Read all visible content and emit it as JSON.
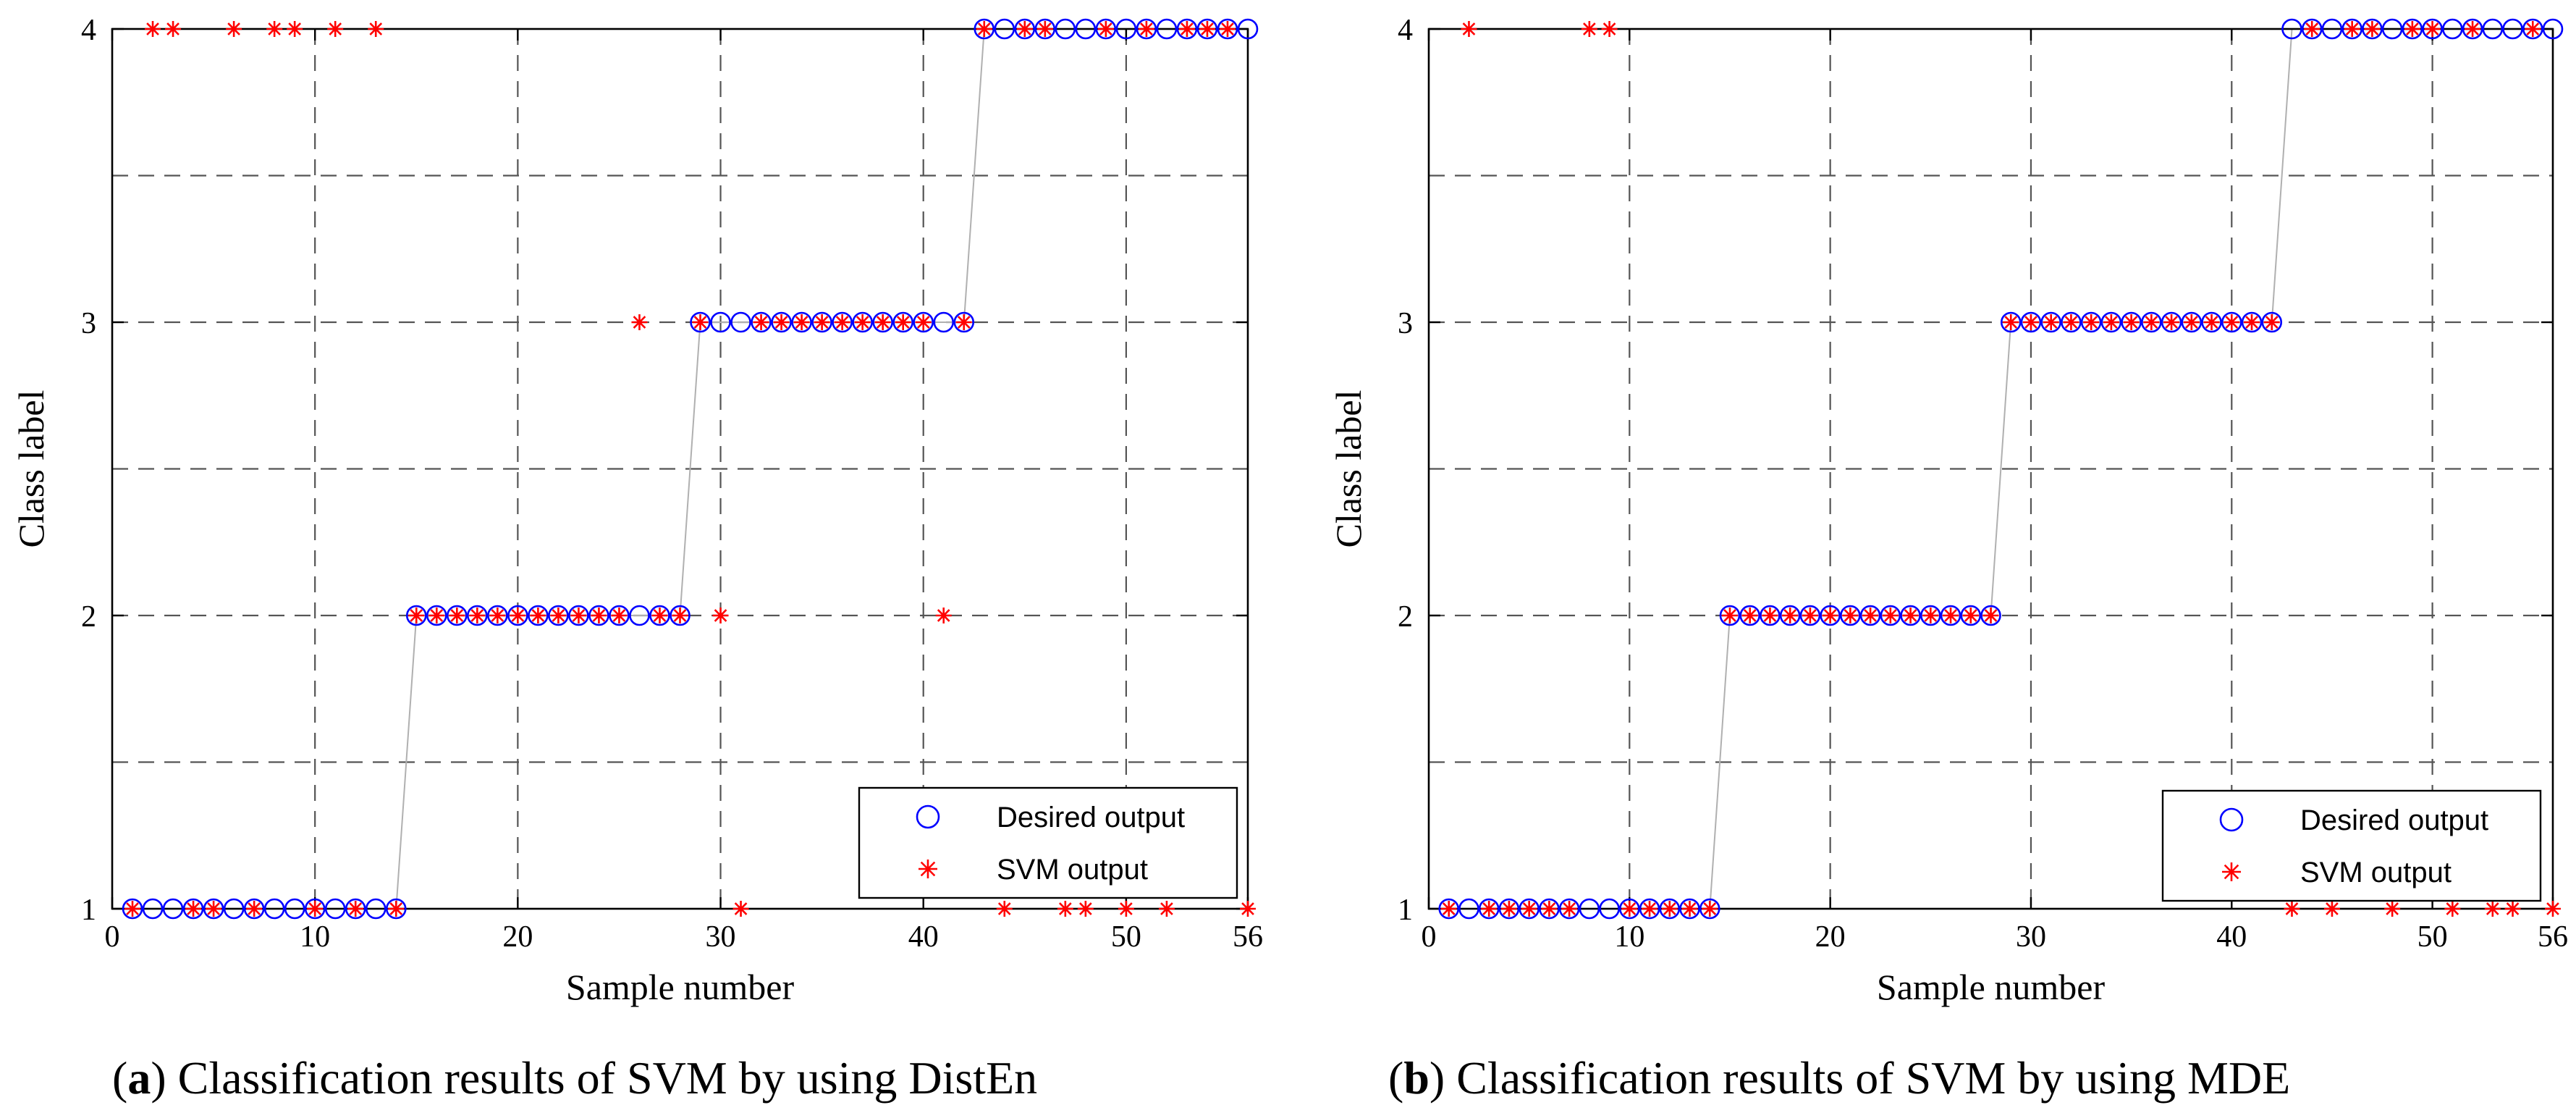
{
  "chart_data": [
    {
      "type": "scatter",
      "caption_letter": "a",
      "caption_rest": ") Classification results of SVM by using DistEn",
      "caption_open": "(",
      "xlabel": "Sample number",
      "ylabel": "Class label",
      "xlim": [
        0,
        56
      ],
      "ylim": [
        1,
        4
      ],
      "xticks": [
        0,
        10,
        20,
        30,
        40,
        50,
        56
      ],
      "yticks": [
        1,
        2,
        3,
        4
      ],
      "grid": true,
      "legend_position": "bottom-right",
      "legend": [
        "Desired output",
        "SVM output"
      ],
      "series": [
        {
          "name": "Desired output",
          "marker": "circle",
          "color": "#0000ff",
          "x": [
            1,
            2,
            3,
            4,
            5,
            6,
            7,
            8,
            9,
            10,
            11,
            12,
            13,
            14,
            15,
            16,
            17,
            18,
            19,
            20,
            21,
            22,
            23,
            24,
            25,
            26,
            27,
            28,
            29,
            30,
            31,
            32,
            33,
            34,
            35,
            36,
            37,
            38,
            39,
            40,
            41,
            42,
            43,
            44,
            45,
            46,
            47,
            48,
            49,
            50,
            51,
            52,
            53,
            54,
            55,
            56
          ],
          "y": [
            1,
            1,
            1,
            1,
            1,
            1,
            1,
            1,
            1,
            1,
            1,
            1,
            1,
            1,
            2,
            2,
            2,
            2,
            2,
            2,
            2,
            2,
            2,
            2,
            2,
            2,
            2,
            2,
            3,
            3,
            3,
            3,
            3,
            3,
            3,
            3,
            3,
            3,
            3,
            3,
            3,
            3,
            4,
            4,
            4,
            4,
            4,
            4,
            4,
            4,
            4,
            4,
            4,
            4,
            4,
            4
          ]
        },
        {
          "name": "SVM output",
          "marker": "star",
          "color": "#ff0000",
          "x": [
            1,
            2,
            3,
            4,
            5,
            6,
            7,
            8,
            9,
            10,
            11,
            12,
            13,
            14,
            15,
            16,
            17,
            18,
            19,
            20,
            21,
            22,
            23,
            24,
            25,
            26,
            27,
            28,
            29,
            30,
            31,
            32,
            33,
            34,
            35,
            36,
            37,
            38,
            39,
            40,
            41,
            42,
            43,
            44,
            45,
            46,
            47,
            48,
            49,
            50,
            51,
            52,
            53,
            54,
            55,
            56
          ],
          "y": [
            1,
            4,
            4,
            1,
            1,
            4,
            1,
            4,
            4,
            1,
            4,
            1,
            4,
            1,
            2,
            2,
            2,
            2,
            2,
            2,
            2,
            2,
            2,
            2,
            2,
            3,
            2,
            2,
            3,
            2,
            1,
            3,
            3,
            3,
            3,
            3,
            3,
            3,
            3,
            3,
            2,
            3,
            4,
            1,
            4,
            4,
            1,
            1,
            4,
            1,
            4,
            1,
            4,
            4,
            4,
            1
          ]
        }
      ]
    },
    {
      "type": "scatter",
      "caption_letter": "b",
      "caption_rest": ") Classification results of SVM by using MDE",
      "caption_open": "(",
      "xlabel": "Sample number",
      "ylabel": "Class label",
      "xlim": [
        0,
        56
      ],
      "ylim": [
        1,
        4
      ],
      "xticks": [
        0,
        10,
        20,
        30,
        40,
        50,
        56
      ],
      "yticks": [
        1,
        2,
        3,
        4
      ],
      "grid": true,
      "legend_position": "bottom-right",
      "legend": [
        "Desired output",
        "SVM output"
      ],
      "series": [
        {
          "name": "Desired output",
          "marker": "circle",
          "color": "#0000ff",
          "x": [
            1,
            2,
            3,
            4,
            5,
            6,
            7,
            8,
            9,
            10,
            11,
            12,
            13,
            14,
            15,
            16,
            17,
            18,
            19,
            20,
            21,
            22,
            23,
            24,
            25,
            26,
            27,
            28,
            29,
            30,
            31,
            32,
            33,
            34,
            35,
            36,
            37,
            38,
            39,
            40,
            41,
            42,
            43,
            44,
            45,
            46,
            47,
            48,
            49,
            50,
            51,
            52,
            53,
            54,
            55,
            56
          ],
          "y": [
            1,
            1,
            1,
            1,
            1,
            1,
            1,
            1,
            1,
            1,
            1,
            1,
            1,
            1,
            2,
            2,
            2,
            2,
            2,
            2,
            2,
            2,
            2,
            2,
            2,
            2,
            2,
            2,
            3,
            3,
            3,
            3,
            3,
            3,
            3,
            3,
            3,
            3,
            3,
            3,
            3,
            3,
            4,
            4,
            4,
            4,
            4,
            4,
            4,
            4,
            4,
            4,
            4,
            4,
            4,
            4
          ]
        },
        {
          "name": "SVM output",
          "marker": "star",
          "color": "#ff0000",
          "x": [
            1,
            2,
            3,
            4,
            5,
            6,
            7,
            8,
            9,
            10,
            11,
            12,
            13,
            14,
            15,
            16,
            17,
            18,
            19,
            20,
            21,
            22,
            23,
            24,
            25,
            26,
            27,
            28,
            29,
            30,
            31,
            32,
            33,
            34,
            35,
            36,
            37,
            38,
            39,
            40,
            41,
            42,
            43,
            44,
            45,
            46,
            47,
            48,
            49,
            50,
            51,
            52,
            53,
            54,
            55,
            56
          ],
          "y": [
            1,
            4,
            1,
            1,
            1,
            1,
            1,
            4,
            4,
            1,
            1,
            1,
            1,
            1,
            2,
            2,
            2,
            2,
            2,
            2,
            2,
            2,
            2,
            2,
            2,
            2,
            2,
            2,
            3,
            3,
            3,
            3,
            3,
            3,
            3,
            3,
            3,
            3,
            3,
            3,
            3,
            3,
            1,
            4,
            1,
            4,
            4,
            1,
            4,
            4,
            1,
            4,
            1,
            1,
            4,
            1
          ]
        }
      ]
    }
  ]
}
